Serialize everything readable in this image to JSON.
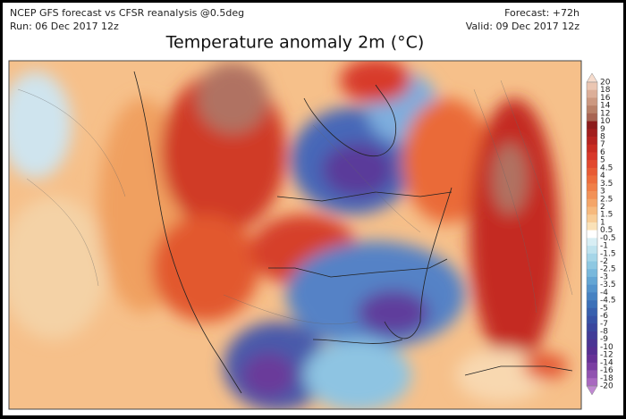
{
  "header": {
    "model": "NCEP GFS forecast vs CFSR reanalysis @0.5deg",
    "run": "Run: 06 Dec 2017 12z",
    "forecast": "Forecast: +72h",
    "valid": "Valid: 09 Dec 2017 12z"
  },
  "title": "Temperature anomaly 2m (°C)",
  "colorbar": {
    "labels": [
      20,
      18,
      16,
      14,
      12,
      10,
      9,
      8,
      7,
      6,
      5,
      4.5,
      4,
      3.5,
      3,
      2.5,
      2,
      1.5,
      1,
      0.5,
      -0.5,
      -1,
      -1.5,
      -2,
      -2.5,
      -3,
      -3.5,
      -4,
      -4.5,
      -5,
      -6,
      -7,
      -8,
      -9,
      -10,
      -12,
      -14,
      -16,
      -18,
      -20
    ],
    "colors": [
      "#f6dccd",
      "#ebc6b2",
      "#dcae98",
      "#cc9880",
      "#b98068",
      "#a86452",
      "#8c1c1c",
      "#a21e1e",
      "#b62320",
      "#c92c22",
      "#d8382a",
      "#e2482e",
      "#e85b34",
      "#ed6d3c",
      "#f07f48",
      "#f29157",
      "#f4a568",
      "#f6b97d",
      "#f8cd97",
      "#fae2b8",
      "#ffffff",
      "#d8eef4",
      "#bfe3ee",
      "#a6d6e8",
      "#8ec8e2",
      "#78b8dc",
      "#64a6d4",
      "#5494cc",
      "#4682c2",
      "#3c70b8",
      "#3860ae",
      "#3752a6",
      "#3a469e",
      "#413c98",
      "#4a3494",
      "#562e92",
      "#663096",
      "#7a3ea2",
      "#9052b0",
      "#a868c0",
      "#c088d2"
    ]
  }
}
